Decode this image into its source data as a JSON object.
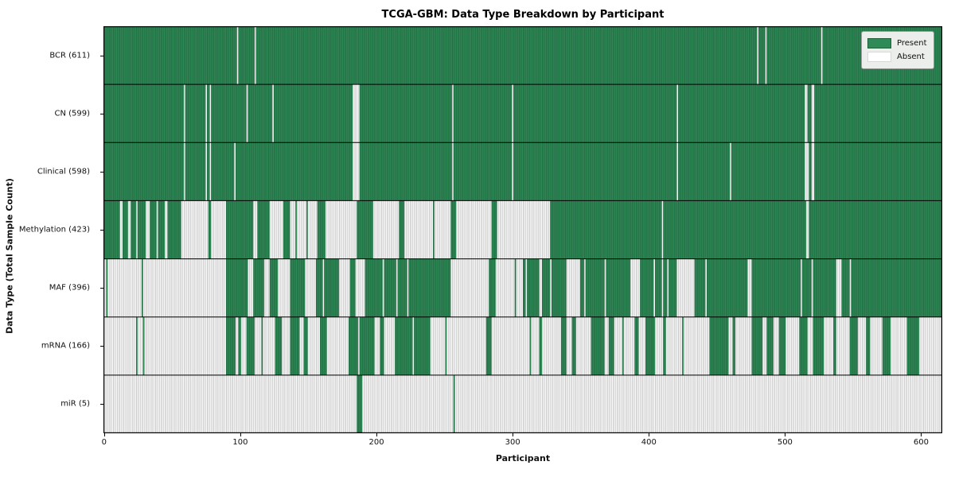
{
  "title": "TCGA-GBM: Data Type Breakdown by Participant",
  "xlabel": "Participant",
  "ylabel": "Data Type (Total Sample Count)",
  "legend": {
    "present_label": "Present",
    "absent_label": "Absent"
  },
  "colors": {
    "present": "#2e8b57",
    "absent": "#ffffff",
    "stripe": "rgba(0,0,0,0.33)",
    "spine": "#000000"
  },
  "chart_data": {
    "type": "heatmap",
    "title": "TCGA-GBM: Data Type Breakdown by Participant",
    "xlabel": "Participant",
    "ylabel": "Data Type (Total Sample Count)",
    "legend_entries": [
      "Present",
      "Absent"
    ],
    "legend_position": "upper right",
    "n_participants": 616,
    "x_ticks": [
      0,
      100,
      200,
      300,
      400,
      500,
      600
    ],
    "xlim": [
      -0.5,
      615.5
    ],
    "grid": false,
    "rows": [
      {
        "label": "BCR (611)",
        "data_type": "BCR",
        "total_samples": 611,
        "present_runs": [
          [
            0,
            97
          ],
          [
            99,
            110
          ],
          [
            112,
            479
          ],
          [
            481,
            485
          ],
          [
            487,
            526
          ],
          [
            528,
            615
          ]
        ]
      },
      {
        "label": "CN (599)",
        "data_type": "CN",
        "total_samples": 599,
        "present_runs": [
          [
            0,
            58
          ],
          [
            60,
            74
          ],
          [
            76,
            77
          ],
          [
            79,
            104
          ],
          [
            106,
            123
          ],
          [
            125,
            182
          ],
          [
            188,
            255
          ],
          [
            257,
            299
          ],
          [
            301,
            420
          ],
          [
            422,
            514
          ],
          [
            517,
            519
          ],
          [
            522,
            615
          ]
        ]
      },
      {
        "label": "Clinical (598)",
        "data_type": "Clinical",
        "total_samples": 598,
        "present_runs": [
          [
            0,
            58
          ],
          [
            60,
            74
          ],
          [
            76,
            77
          ],
          [
            79,
            95
          ],
          [
            97,
            182
          ],
          [
            188,
            255
          ],
          [
            257,
            299
          ],
          [
            301,
            420
          ],
          [
            422,
            459
          ],
          [
            461,
            514
          ],
          [
            518,
            519
          ],
          [
            522,
            615
          ]
        ]
      },
      {
        "label": "Methylation (423)",
        "data_type": "Methylation",
        "total_samples": 423,
        "present_runs": [
          [
            0,
            11
          ],
          [
            14,
            17
          ],
          [
            20,
            23
          ],
          [
            25,
            30
          ],
          [
            34,
            38
          ],
          [
            40,
            44
          ],
          [
            47,
            56
          ],
          [
            77,
            78
          ],
          [
            90,
            109
          ],
          [
            113,
            121
          ],
          [
            132,
            136
          ],
          [
            141,
            141
          ],
          [
            149,
            149
          ],
          [
            157,
            162
          ],
          [
            186,
            197
          ],
          [
            217,
            220
          ],
          [
            242,
            242
          ],
          [
            255,
            258
          ],
          [
            285,
            288
          ],
          [
            328,
            409
          ],
          [
            411,
            515
          ],
          [
            518,
            615
          ]
        ]
      },
      {
        "label": "MAF (396)",
        "data_type": "MAF",
        "total_samples": 396,
        "present_runs": [
          [
            2,
            2
          ],
          [
            28,
            28
          ],
          [
            90,
            105
          ],
          [
            110,
            117
          ],
          [
            122,
            127
          ],
          [
            137,
            147
          ],
          [
            156,
            160
          ],
          [
            162,
            172
          ],
          [
            181,
            184
          ],
          [
            192,
            204
          ],
          [
            206,
            214
          ],
          [
            216,
            222
          ],
          [
            224,
            254
          ],
          [
            283,
            287
          ],
          [
            302,
            302
          ],
          [
            308,
            309
          ],
          [
            311,
            319
          ],
          [
            322,
            327
          ],
          [
            329,
            339
          ],
          [
            350,
            352
          ],
          [
            354,
            367
          ],
          [
            369,
            386
          ],
          [
            394,
            403
          ],
          [
            405,
            409
          ],
          [
            411,
            413
          ],
          [
            415,
            420
          ],
          [
            434,
            441
          ],
          [
            443,
            472
          ],
          [
            476,
            511
          ],
          [
            513,
            519
          ],
          [
            521,
            537
          ],
          [
            542,
            547
          ],
          [
            549,
            615
          ]
        ]
      },
      {
        "label": "mRNA (166)",
        "data_type": "mRNA",
        "total_samples": 166,
        "present_runs": [
          [
            24,
            24
          ],
          [
            29,
            29
          ],
          [
            90,
            96
          ],
          [
            99,
            100
          ],
          [
            105,
            110
          ],
          [
            116,
            116
          ],
          [
            126,
            130
          ],
          [
            137,
            143
          ],
          [
            147,
            149
          ],
          [
            159,
            163
          ],
          [
            180,
            186
          ],
          [
            188,
            198
          ],
          [
            203,
            205
          ],
          [
            214,
            226
          ],
          [
            228,
            239
          ],
          [
            251,
            251
          ],
          [
            281,
            284
          ],
          [
            313,
            313
          ],
          [
            320,
            321
          ],
          [
            336,
            339
          ],
          [
            344,
            346
          ],
          [
            358,
            367
          ],
          [
            371,
            374
          ],
          [
            381,
            381
          ],
          [
            390,
            392
          ],
          [
            398,
            404
          ],
          [
            411,
            412
          ],
          [
            425,
            425
          ],
          [
            445,
            458
          ],
          [
            462,
            463
          ],
          [
            476,
            483
          ],
          [
            487,
            491
          ],
          [
            496,
            500
          ],
          [
            511,
            516
          ],
          [
            521,
            528
          ],
          [
            536,
            537
          ],
          [
            548,
            553
          ],
          [
            560,
            562
          ],
          [
            572,
            577
          ],
          [
            590,
            598
          ]
        ]
      },
      {
        "label": "miR (5)",
        "data_type": "miR",
        "total_samples": 5,
        "present_runs": [
          [
            186,
            189
          ],
          [
            257,
            257
          ]
        ]
      }
    ]
  }
}
